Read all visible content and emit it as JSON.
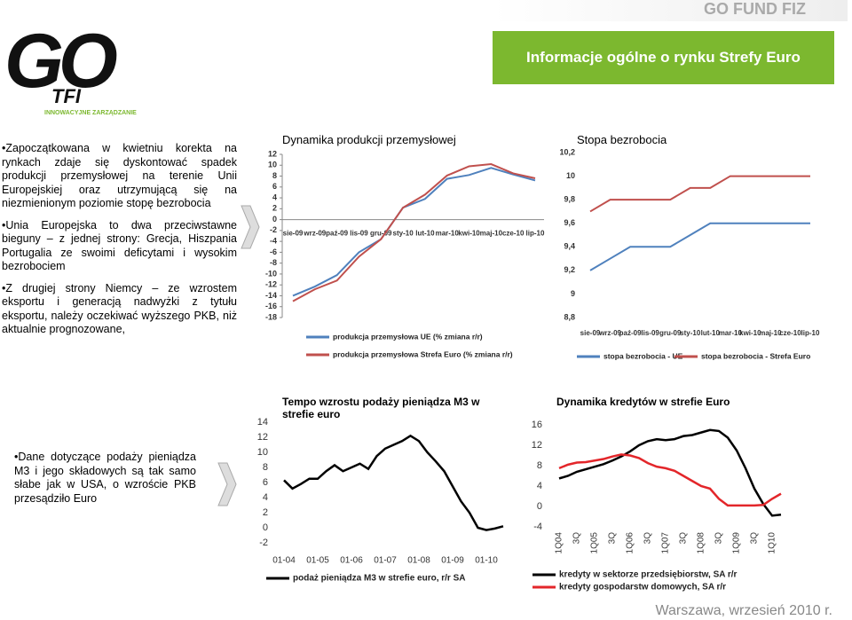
{
  "header": {
    "brand": "GO FUND FIZ",
    "title": "Informacje ogólne o rynku Strefy Euro",
    "logo": "GO",
    "logo_sub": "TFI",
    "tagline": "INNOWACYJNE ZARZĄDZANIE"
  },
  "bullets": [
    "Zapoczątkowana w kwietniu korekta na rynkach zdaje się dyskontować spadek produkcji przemysłowej na terenie Unii Europejskiej oraz utrzymującą się na niezmienionym poziomie stopę bezrobocia",
    "Unia Europejska to dwa przeciwstawne bieguny – z jednej strony: Grecja, Hiszpania Portugalia ze swoimi deficytami i wysokim bezrobociem",
    "Z drugiej strony Niemcy – ze wzrostem eksportu i generacją nadwyżki z tytułu eksportu, należy oczekiwać wyższego PKB, niż aktualnie prognozowane,"
  ],
  "note": "Dane dotyczące podaży pieniądza M3 i jego składowych są tak samo słabe jak w USA, o wzroście PKB przesądziło Euro",
  "footer": "Warszawa, wrzesień 2010 r.",
  "chart_data": [
    {
      "type": "line",
      "title": "Dynamika produkcji przemysłowej",
      "categories": [
        "sie-09",
        "wrz-09",
        "paź-09",
        "lis-09",
        "gru-09",
        "sty-10",
        "lut-10",
        "mar-10",
        "kwi-10",
        "maj-10",
        "cze-10",
        "lip-10"
      ],
      "series": [
        {
          "name": "produkcja przemysłowa UE (% zmiana r/r)",
          "color": "#4f81bd",
          "values": [
            -14,
            -12.3,
            -10.2,
            -6,
            -3.6,
            2.2,
            3.8,
            7.5,
            8.2,
            9.5,
            8.3,
            7.2
          ]
        },
        {
          "name": "produkcja przemysłowa Strefa Euro (% zmiana r/r)",
          "color": "#c0504d",
          "values": [
            -15,
            -12.8,
            -11.2,
            -6.8,
            -3.6,
            2.2,
            4.6,
            8.1,
            9.8,
            10.2,
            8.5,
            7.6
          ]
        }
      ],
      "ylim": [
        -18,
        12
      ],
      "yticks": [
        12,
        10,
        8,
        6,
        4,
        2,
        0,
        -2,
        -4,
        -6,
        -8,
        -10,
        -12,
        -14,
        -16,
        -18
      ],
      "legend": "bottom"
    },
    {
      "type": "line",
      "title": "Stopa bezrobocia",
      "categories": [
        "sie-09",
        "wrz-09",
        "paź-09",
        "lis-09",
        "gru-09",
        "sty-10",
        "lut-10",
        "mar-10",
        "kwi-10",
        "maj-10",
        "cze-10",
        "lip-10"
      ],
      "series": [
        {
          "name": "stopa bezrobocia - UE",
          "color": "#4f81bd",
          "values": [
            9.2,
            9.3,
            9.4,
            9.4,
            9.4,
            9.5,
            9.6,
            9.6,
            9.6,
            9.6,
            9.6,
            9.6
          ]
        },
        {
          "name": "stopa bezrobocia - Strefa Euro",
          "color": "#c0504d",
          "values": [
            9.7,
            9.8,
            9.8,
            9.8,
            9.8,
            9.9,
            9.9,
            10,
            10,
            10,
            10,
            10
          ]
        }
      ],
      "ylim": [
        8.8,
        10.2
      ],
      "yticks": [
        {
          "value": 10.2,
          "label": "10,2"
        },
        10,
        {
          "value": 9.8,
          "label": "9,8"
        },
        {
          "value": 9.6,
          "label": "9,6"
        },
        {
          "value": 9.4,
          "label": "9,4"
        },
        {
          "value": 9.2,
          "label": "9,2"
        },
        9,
        {
          "value": 8.8,
          "label": "8,8"
        }
      ],
      "legend": "bottom"
    },
    {
      "type": "line",
      "title": "Tempo wzrostu podaży pieniądza M3 w strefie euro",
      "categories": [
        "01-04",
        null,
        null,
        null,
        "01-05",
        null,
        null,
        null,
        "01-06",
        null,
        null,
        null,
        "01-07",
        null,
        null,
        null,
        "01-08",
        null,
        null,
        null,
        "01-09",
        null,
        null,
        null,
        "01-10",
        null,
        null
      ],
      "series": [
        {
          "name": "podaż pieniądza M3 w strefie euro, r/r SA",
          "color": "#000000",
          "values": [
            6.3,
            5.2,
            5.8,
            6.5,
            6.5,
            7.5,
            8.3,
            7.5,
            8.0,
            8.5,
            7.8,
            9.5,
            10.5,
            11.0,
            11.5,
            12.2,
            11.5,
            10.0,
            8.8,
            7.5,
            5.5,
            3.5,
            2.0,
            0,
            -0.3,
            -0.1,
            0.2
          ]
        }
      ],
      "ylim": [
        -2,
        14
      ],
      "yticks": [
        14,
        12,
        10,
        8,
        6,
        4,
        2,
        0,
        -2
      ],
      "legend": "bottom"
    },
    {
      "type": "line",
      "title": "Dynamika kredytów w strefie Euro",
      "categories": [
        "1Q04",
        null,
        "3Q",
        null,
        "1Q05",
        null,
        "3Q",
        null,
        "1Q06",
        null,
        "3Q",
        null,
        "1Q07",
        null,
        "3Q",
        null,
        "1Q08",
        null,
        "3Q",
        null,
        "1Q09",
        null,
        "3Q",
        null,
        "1Q10",
        null
      ],
      "series": [
        {
          "name": "kredyty w sektorze przedsiębiorstw, SA r/r",
          "color": "#000000",
          "values": [
            5.5,
            6,
            6.8,
            7.3,
            7.8,
            8.3,
            9,
            9.8,
            10.8,
            12,
            12.8,
            13.2,
            13,
            13.2,
            13.8,
            14,
            14.5,
            15,
            14.8,
            13.5,
            11,
            7.5,
            3.5,
            0.5,
            -1.8,
            -1.6
          ]
        },
        {
          "name": "kredyty gospodarstw domowych, SA r/r",
          "color": "#e3262a",
          "values": [
            7.5,
            8.2,
            8.6,
            8.7,
            9,
            9.3,
            9.8,
            10.2,
            10,
            9.5,
            8.5,
            7.8,
            7.5,
            7,
            6,
            5,
            4,
            3.5,
            1.5,
            0.2,
            0.2,
            0.2,
            0.2,
            0.3,
            1.5,
            2.5
          ]
        }
      ],
      "ylim": [
        -4,
        16
      ],
      "yticks": [
        16,
        12,
        8,
        4,
        0,
        -4
      ],
      "legend": "bottom"
    }
  ]
}
